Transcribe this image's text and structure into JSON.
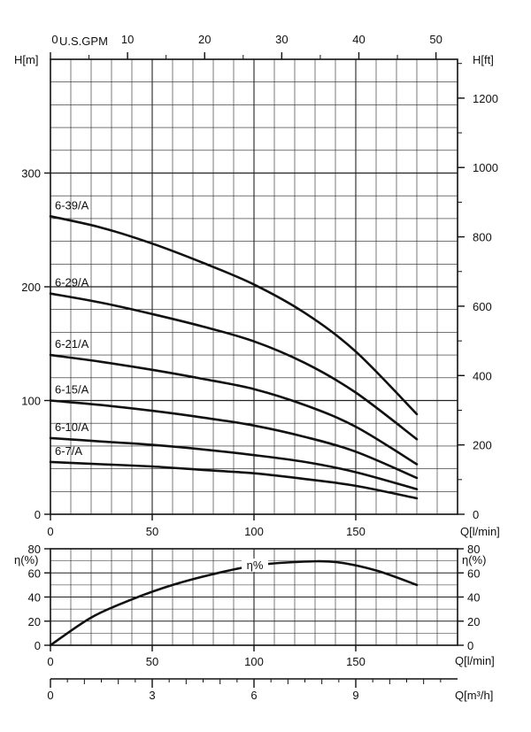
{
  "chart_data": [
    {
      "type": "line",
      "title": "",
      "xlabel": "Q[l/min]",
      "ylabel": "H[m]",
      "y2label": "H[ft]",
      "x2label": "U.S.GPM",
      "xlim": [
        0,
        200
      ],
      "ylim": [
        0,
        400
      ],
      "y2lim": [
        0,
        1312
      ],
      "x2lim": [
        0,
        52.8
      ],
      "xticks": [
        "0",
        "50",
        "100",
        "150"
      ],
      "yticks": [
        "0",
        "100",
        "200",
        "300"
      ],
      "y2ticks": [
        "0",
        "200",
        "400",
        "600",
        "800",
        "1000",
        "1200"
      ],
      "x2ticks": [
        "0",
        "10",
        "20",
        "30",
        "40",
        "50"
      ],
      "grid": true,
      "series": [
        {
          "name": "6-39/A",
          "x": [
            0,
            25,
            50,
            75,
            100,
            125,
            150,
            180
          ],
          "y": [
            262,
            252,
            238,
            221,
            202,
            177,
            143,
            88
          ]
        },
        {
          "name": "6-29/A",
          "x": [
            0,
            25,
            50,
            75,
            100,
            125,
            150,
            180
          ],
          "y": [
            194,
            186,
            176,
            165,
            152,
            133,
            107,
            66
          ]
        },
        {
          "name": "6-21/A",
          "x": [
            0,
            25,
            50,
            75,
            100,
            125,
            150,
            180
          ],
          "y": [
            140,
            134,
            127,
            119,
            110,
            96,
            77,
            44
          ]
        },
        {
          "name": "6-15/A",
          "x": [
            0,
            25,
            50,
            75,
            100,
            125,
            150,
            180
          ],
          "y": [
            100,
            96,
            91,
            85,
            78,
            68,
            55,
            32
          ]
        },
        {
          "name": "6-10/A",
          "x": [
            0,
            25,
            50,
            75,
            100,
            125,
            150,
            180
          ],
          "y": [
            67,
            64,
            61,
            57,
            52,
            46,
            37,
            22
          ]
        },
        {
          "name": "6-7/A",
          "x": [
            0,
            25,
            50,
            75,
            100,
            125,
            150,
            180
          ],
          "y": [
            46,
            44,
            42,
            39,
            36,
            31,
            25,
            14
          ]
        }
      ]
    },
    {
      "type": "line",
      "title": "",
      "xlabel": "Q[l/min]",
      "ylabel": "η(%)",
      "y2label": "η(%)",
      "x3label": "Q[m³/h]",
      "xlim": [
        0,
        200
      ],
      "ylim": [
        0,
        80
      ],
      "x3lim": [
        0,
        12
      ],
      "xticks": [
        "0",
        "50",
        "100",
        "150"
      ],
      "yticks": [
        "0",
        "20",
        "40",
        "60",
        "80"
      ],
      "x3ticks": [
        "0",
        "3",
        "6",
        "9"
      ],
      "grid": true,
      "series": [
        {
          "name": "η%",
          "x": [
            0,
            20,
            40,
            60,
            80,
            100,
            120,
            140,
            160,
            180
          ],
          "y": [
            0,
            23,
            38,
            50,
            59,
            66,
            69,
            69,
            62,
            50
          ]
        }
      ]
    }
  ]
}
